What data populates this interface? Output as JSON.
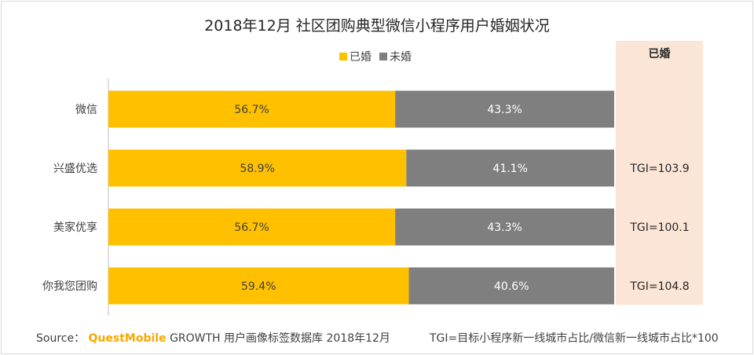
{
  "chart_data": {
    "type": "bar",
    "orientation": "horizontal-stacked-percent",
    "title": "2018年12月 社区团购典型微信小程序用户婚姻状况",
    "categories": [
      "微信",
      "兴盛优选",
      "美家优享",
      "你我您团购"
    ],
    "series": [
      {
        "name": "已婚",
        "color": "#ffc000",
        "values": [
          56.7,
          58.9,
          56.7,
          59.4
        ],
        "labels": [
          "56.7%",
          "58.9%",
          "56.7%",
          "59.4%"
        ]
      },
      {
        "name": "未婚",
        "color": "#7f7f7f",
        "values": [
          43.3,
          41.1,
          43.3,
          40.6
        ],
        "labels": [
          "43.3%",
          "41.1%",
          "43.3%",
          "40.6%"
        ]
      }
    ],
    "xlim": [
      0,
      100
    ],
    "tgi_column": {
      "header": "已婚",
      "values": [
        "",
        "TGI=103.9",
        "TGI=100.1",
        "TGI=104.8"
      ]
    },
    "legend_position": "top-center"
  },
  "footer": {
    "source_label": "Source：",
    "brand": "QuestMobile",
    "source_text": "GROWTH 用户画像标签数据库 2018年12月",
    "note": "TGI=目标小程序新一线城市占比/微信新一线城市占比*100"
  }
}
